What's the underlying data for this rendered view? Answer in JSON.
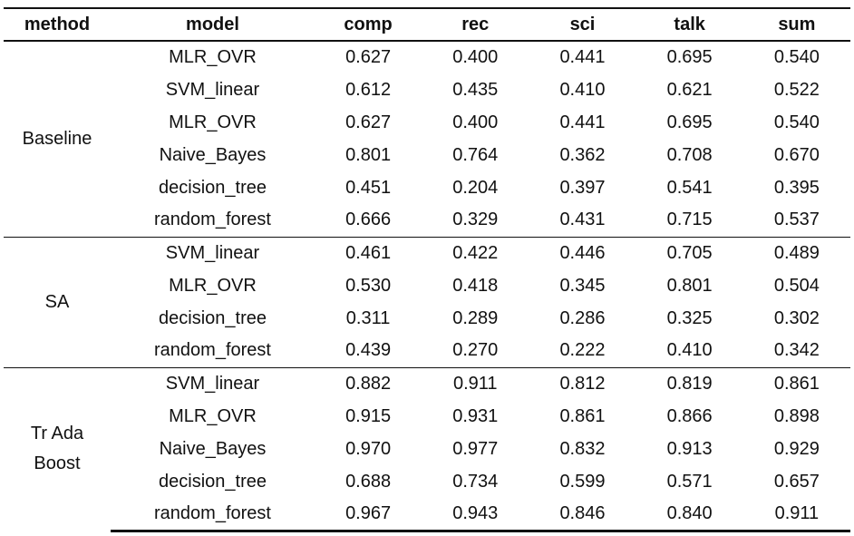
{
  "headers": {
    "method": "method",
    "model": "model",
    "comp": "comp",
    "rec": "rec",
    "sci": "sci",
    "talk": "talk",
    "sum": "sum"
  },
  "groups": [
    {
      "method": "Baseline",
      "rows": [
        {
          "model": "MLR_OVR",
          "comp": "0.627",
          "rec": "0.400",
          "sci": "0.441",
          "talk": "0.695",
          "sum": "0.540"
        },
        {
          "model": "SVM_linear",
          "comp": "0.612",
          "rec": "0.435",
          "sci": "0.410",
          "talk": "0.621",
          "sum": "0.522"
        },
        {
          "model": "MLR_OVR",
          "comp": "0.627",
          "rec": "0.400",
          "sci": "0.441",
          "talk": "0.695",
          "sum": "0.540"
        },
        {
          "model": "Naive_Bayes",
          "comp": "0.801",
          "rec": "0.764",
          "sci": "0.362",
          "talk": "0.708",
          "sum": "0.670"
        },
        {
          "model": "decision_tree",
          "comp": "0.451",
          "rec": "0.204",
          "sci": "0.397",
          "talk": "0.541",
          "sum": "0.395"
        },
        {
          "model": "random_forest",
          "comp": "0.666",
          "rec": "0.329",
          "sci": "0.431",
          "talk": "0.715",
          "sum": "0.537"
        }
      ]
    },
    {
      "method": "SA",
      "rows": [
        {
          "model": "SVM_linear",
          "comp": "0.461",
          "rec": "0.422",
          "sci": "0.446",
          "talk": "0.705",
          "sum": "0.489"
        },
        {
          "model": "MLR_OVR",
          "comp": "0.530",
          "rec": "0.418",
          "sci": "0.345",
          "talk": "0.801",
          "sum": "0.504"
        },
        {
          "model": "decision_tree",
          "comp": "0.311",
          "rec": "0.289",
          "sci": "0.286",
          "talk": "0.325",
          "sum": "0.302"
        },
        {
          "model": "random_forest",
          "comp": "0.439",
          "rec": "0.270",
          "sci": "0.222",
          "talk": "0.410",
          "sum": "0.342"
        }
      ]
    },
    {
      "method_line1": "Tr Ada",
      "method_line2": "Boost",
      "rows": [
        {
          "model": "SVM_linear",
          "comp": "0.882",
          "rec": "0.911",
          "sci": "0.812",
          "talk": "0.819",
          "sum": "0.861"
        },
        {
          "model": "MLR_OVR",
          "comp": "0.915",
          "rec": "0.931",
          "sci": "0.861",
          "talk": "0.866",
          "sum": "0.898"
        },
        {
          "model": "Naive_Bayes",
          "comp": "0.970",
          "rec": "0.977",
          "sci": "0.832",
          "talk": "0.913",
          "sum": "0.929"
        },
        {
          "model": "decision_tree",
          "comp": "0.688",
          "rec": "0.734",
          "sci": "0.599",
          "talk": "0.571",
          "sum": "0.657"
        },
        {
          "model": "random_forest",
          "comp": "0.967",
          "rec": "0.943",
          "sci": "0.846",
          "talk": "0.840",
          "sum": "0.911"
        }
      ]
    }
  ]
}
